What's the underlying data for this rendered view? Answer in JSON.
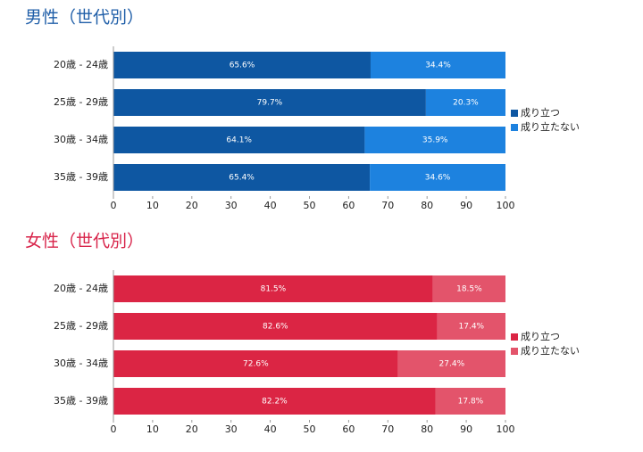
{
  "chart_data": [
    {
      "type": "bar",
      "orientation": "horizontal",
      "stacked": true,
      "title": "男性（世代別）",
      "title_color": "#1f5ea8",
      "categories": [
        "20歳 - 24歳",
        "25歳 - 29歳",
        "30歳 - 34歳",
        "35歳 - 39歳"
      ],
      "series": [
        {
          "name": "成り立つ",
          "color": "#0e57a2",
          "values": [
            65.6,
            79.7,
            64.1,
            65.4
          ],
          "value_labels": [
            "65.6%",
            "79.7%",
            "64.1%",
            "65.4%"
          ]
        },
        {
          "name": "成り立たない",
          "color": "#1d82df",
          "values": [
            34.4,
            20.3,
            35.9,
            34.6
          ],
          "value_labels": [
            "34.4%",
            "20.3%",
            "35.9%",
            "34.6%"
          ]
        }
      ],
      "xlim": [
        0,
        100
      ],
      "xticks": [
        0,
        10,
        20,
        30,
        40,
        50,
        60,
        70,
        80,
        90,
        100
      ],
      "legend": "right"
    },
    {
      "type": "bar",
      "orientation": "horizontal",
      "stacked": true,
      "title": "女性（世代別）",
      "title_color": "#d8244a",
      "categories": [
        "20歳 - 24歳",
        "25歳 - 29歳",
        "30歳 - 34歳",
        "35歳 - 39歳"
      ],
      "series": [
        {
          "name": "成り立つ",
          "color": "#db2544",
          "values": [
            81.5,
            82.6,
            72.6,
            82.2
          ],
          "value_labels": [
            "81.5%",
            "82.6%",
            "72.6%",
            "82.2%"
          ]
        },
        {
          "name": "成り立たない",
          "color": "#e3546b",
          "values": [
            18.5,
            17.4,
            27.4,
            17.8
          ],
          "value_labels": [
            "18.5%",
            "17.4%",
            "27.4%",
            "17.8%"
          ]
        }
      ],
      "xlim": [
        0,
        100
      ],
      "xticks": [
        0,
        10,
        20,
        30,
        40,
        50,
        60,
        70,
        80,
        90,
        100
      ],
      "legend": "right"
    }
  ]
}
